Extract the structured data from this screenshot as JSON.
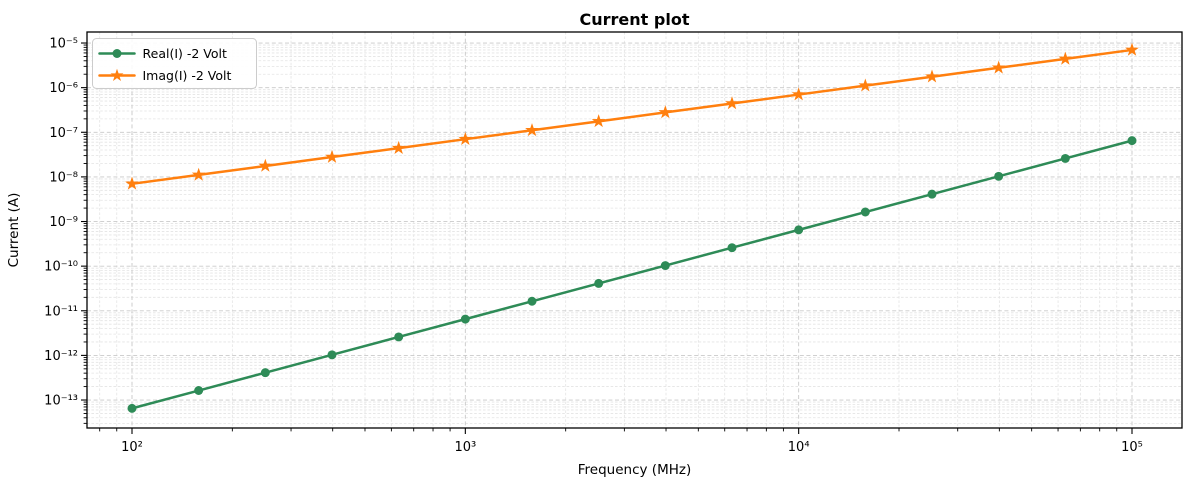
{
  "figure": {
    "title": "Current plot",
    "xlabel": "Frequency (MHz)",
    "ylabel": "Current (A)"
  },
  "legend": {
    "position": "upper left",
    "items": [
      {
        "label": "Real(I) -2 Volt",
        "color": "#2e8b57",
        "marker": "circle"
      },
      {
        "label": "Imag(I) -2 Volt",
        "color": "#ff7f0e",
        "marker": "star"
      }
    ]
  },
  "chart_data": {
    "type": "line",
    "title": "Current plot",
    "xlabel": "Frequency (MHz)",
    "ylabel": "Current (A)",
    "xscale": "log",
    "yscale": "log",
    "grid": "both, dashed",
    "legend_position": "upper left",
    "x": [
      100,
      158.49,
      251.19,
      398.11,
      630.96,
      1000,
      1584.89,
      2511.89,
      3981.07,
      6309.57,
      10000,
      15848.93,
      25118.86,
      39810.72,
      63095.73,
      100000
    ],
    "series": [
      {
        "name": "Real(I) -2 Volt",
        "color": "#2e8b57",
        "marker": "circle",
        "values": [
          6.5e-14,
          1.633e-13,
          4.103e-13,
          1.031e-12,
          2.59e-12,
          6.5e-12,
          1.633e-11,
          4.103e-11,
          1.031e-10,
          2.59e-10,
          6.5e-10,
          1.633e-09,
          4.103e-09,
          1.031e-08,
          2.59e-08,
          6.5e-08
        ]
      },
      {
        "name": "Imag(I) -2 Volt",
        "color": "#ff7f0e",
        "marker": "star",
        "values": [
          7e-09,
          1.109e-08,
          1.758e-08,
          2.787e-08,
          4.416e-08,
          7e-08,
          1.109e-07,
          1.758e-07,
          2.787e-07,
          4.416e-07,
          7e-07,
          1.109e-06,
          1.758e-06,
          2.787e-06,
          4.416e-06,
          7e-06
        ]
      }
    ],
    "x_ticks": [
      {
        "value": 100,
        "label": "10²"
      },
      {
        "value": 1000,
        "label": "10³"
      },
      {
        "value": 10000,
        "label": "10⁴"
      },
      {
        "value": 100000,
        "label": "10⁵"
      }
    ],
    "y_ticks": [
      {
        "value": 1e-05,
        "label": "10⁻⁵"
      },
      {
        "value": 1e-06,
        "label": "10⁻⁶"
      },
      {
        "value": 1e-07,
        "label": "10⁻⁷"
      },
      {
        "value": 1e-08,
        "label": "10⁻⁸"
      },
      {
        "value": 1e-09,
        "label": "10⁻⁹"
      },
      {
        "value": 1e-10,
        "label": "10⁻¹⁰"
      },
      {
        "value": 1e-11,
        "label": "10⁻¹¹"
      },
      {
        "value": 1e-12,
        "label": "10⁻¹²"
      },
      {
        "value": 1e-13,
        "label": "10⁻¹³"
      }
    ],
    "x_log_range": [
      1.865,
      5.15
    ],
    "y_log_range": [
      -13.627,
      -4.753
    ],
    "colors": {
      "grid_major": "#c9c9c9",
      "grid_minor": "#e4e4e4",
      "spine": "#000000",
      "legend_border": "#cccccc",
      "legend_background": "#ffffff"
    }
  }
}
